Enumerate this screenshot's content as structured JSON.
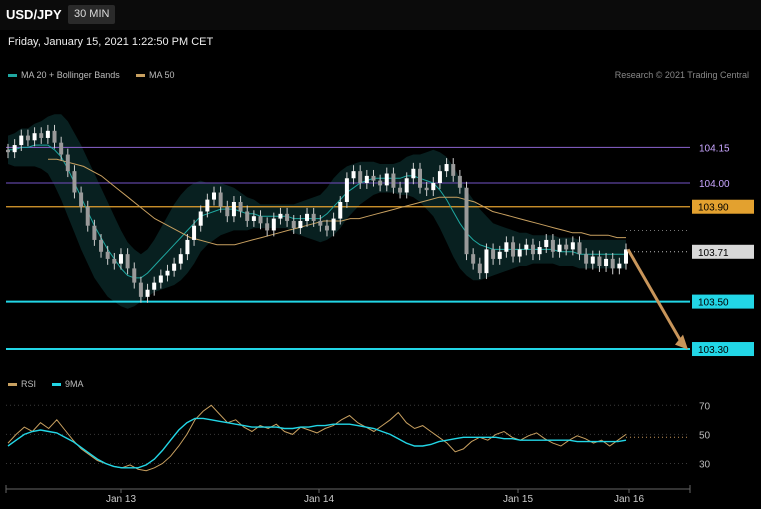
{
  "header": {
    "symbol": "USD/JPY",
    "interval": "30 MIN"
  },
  "timestamp": "Friday, January 15, 2021 1:22:50 PM CET",
  "legend": {
    "bb_label": "MA 20 + Bollinger Bands",
    "bb_color": "#1fa7a0",
    "ma50_label": "MA 50",
    "ma50_color": "#c8a060",
    "rsi_label": "RSI",
    "rsi_color": "#c8a060",
    "ma9_label": "9MA",
    "ma9_color": "#22d6e6"
  },
  "credit": "Research © 2021 Trading Central",
  "chart_data": {
    "type": "candlestick",
    "ylim": [
      103.22,
      104.35
    ],
    "levels": [
      {
        "value": "104.15",
        "color": "#7b58b8",
        "label_color": "#c9a6ff",
        "style": "line"
      },
      {
        "value": "104.00",
        "color": "#5e43a0",
        "label_color": "#c9a6ff",
        "style": "line"
      },
      {
        "value": "103.90",
        "color": "#e3a12f",
        "label_color": "#000",
        "style": "tag"
      },
      {
        "value": "103.71",
        "color": "#d8d8d8",
        "label_color": "#000",
        "style": "tag-current"
      },
      {
        "value": "103.50",
        "color": "#22d6e6",
        "label_color": "#000",
        "style": "tag"
      },
      {
        "value": "103.30",
        "color": "#22d6e6",
        "label_color": "#000",
        "style": "tag"
      }
    ],
    "forecast_arrow": {
      "from": 103.72,
      "to": 103.31,
      "color": "#c8955a"
    },
    "x_ticks": [
      "Jan 13",
      "Jan 14",
      "Jan 15",
      "Jan 16"
    ],
    "price_close": [
      104.13,
      104.16,
      104.2,
      104.18,
      104.21,
      104.19,
      104.22,
      104.17,
      104.12,
      104.05,
      103.96,
      103.9,
      103.82,
      103.76,
      103.71,
      103.68,
      103.66,
      103.7,
      103.64,
      103.58,
      103.52,
      103.55,
      103.58,
      103.61,
      103.63,
      103.66,
      103.7,
      103.76,
      103.82,
      103.88,
      103.93,
      103.96,
      103.9,
      103.86,
      103.92,
      103.88,
      103.84,
      103.86,
      103.83,
      103.8,
      103.85,
      103.87,
      103.84,
      103.81,
      103.84,
      103.87,
      103.84,
      103.82,
      103.8,
      103.85,
      103.92,
      104.02,
      104.05,
      104.0,
      104.03,
      104.01,
      103.99,
      104.04,
      103.98,
      103.96,
      104.02,
      104.06,
      103.98,
      103.97,
      104.0,
      104.05,
      104.08,
      104.03,
      103.98,
      103.7,
      103.66,
      103.62,
      103.72,
      103.68,
      103.71,
      103.75,
      103.69,
      103.72,
      103.74,
      103.7,
      103.73,
      103.76,
      103.71,
      103.74,
      103.72,
      103.75,
      103.7,
      103.66,
      103.69,
      103.65,
      103.68,
      103.64,
      103.66,
      103.72
    ],
    "ma20": [
      104.14,
      104.14,
      104.15,
      104.15,
      104.16,
      104.16,
      104.16,
      104.14,
      104.11,
      104.06,
      104.0,
      103.94,
      103.88,
      103.82,
      103.77,
      103.72,
      103.68,
      103.64,
      103.61,
      103.6,
      103.6,
      103.62,
      103.65,
      103.68,
      103.71,
      103.74,
      103.77,
      103.8,
      103.83,
      103.86,
      103.87,
      103.88,
      103.89,
      103.89,
      103.89,
      103.88,
      103.87,
      103.87,
      103.86,
      103.86,
      103.86,
      103.86,
      103.86,
      103.85,
      103.85,
      103.85,
      103.85,
      103.85,
      103.87,
      103.9,
      103.93,
      103.96,
      103.98,
      104.0,
      104.01,
      104.02,
      104.02,
      104.02,
      104.02,
      104.02,
      104.03,
      104.03,
      104.02,
      104.01,
      104.0,
      103.97,
      103.93,
      103.88,
      103.83,
      103.79,
      103.76,
      103.74,
      103.73,
      103.72,
      103.72,
      103.72,
      103.72,
      103.72,
      103.72,
      103.72,
      103.72,
      103.72,
      103.72,
      103.71,
      103.71,
      103.71,
      103.7,
      103.7,
      103.7,
      103.7,
      103.7,
      103.7,
      103.7,
      103.7
    ],
    "bb_width": [
      0.06,
      0.07,
      0.08,
      0.08,
      0.09,
      0.1,
      0.12,
      0.15,
      0.18,
      0.2,
      0.21,
      0.22,
      0.22,
      0.22,
      0.21,
      0.2,
      0.18,
      0.16,
      0.14,
      0.12,
      0.1,
      0.1,
      0.11,
      0.13,
      0.15,
      0.17,
      0.18,
      0.18,
      0.17,
      0.15,
      0.13,
      0.12,
      0.11,
      0.1,
      0.09,
      0.08,
      0.07,
      0.06,
      0.05,
      0.05,
      0.05,
      0.05,
      0.05,
      0.06,
      0.07,
      0.08,
      0.09,
      0.1,
      0.11,
      0.12,
      0.12,
      0.11,
      0.1,
      0.09,
      0.08,
      0.07,
      0.06,
      0.06,
      0.06,
      0.07,
      0.08,
      0.09,
      0.1,
      0.12,
      0.14,
      0.16,
      0.18,
      0.19,
      0.19,
      0.18,
      0.17,
      0.15,
      0.13,
      0.11,
      0.1,
      0.09,
      0.08,
      0.07,
      0.07,
      0.06,
      0.06,
      0.06,
      0.06,
      0.06,
      0.06,
      0.06,
      0.06,
      0.06,
      0.06,
      0.06,
      0.06,
      0.06,
      0.06,
      0.06
    ],
    "ma50": [
      104.1,
      104.1,
      104.09,
      104.08,
      104.07,
      104.05,
      104.03,
      104.0,
      103.97,
      103.94,
      103.91,
      103.88,
      103.85,
      103.83,
      103.81,
      103.79,
      103.77,
      103.76,
      103.75,
      103.74,
      103.74,
      103.74,
      103.75,
      103.76,
      103.77,
      103.78,
      103.79,
      103.8,
      103.81,
      103.82,
      103.83,
      103.84,
      103.84,
      103.84,
      103.85,
      103.85,
      103.86,
      103.87,
      103.88,
      103.89,
      103.9,
      103.91,
      103.92,
      103.93,
      103.94,
      103.94,
      103.94,
      103.93,
      103.92,
      103.9,
      103.88,
      103.87,
      103.86,
      103.85,
      103.84,
      103.83,
      103.82,
      103.81,
      103.8,
      103.79,
      103.79,
      103.78,
      103.78,
      103.78,
      103.77,
      103.77
    ],
    "rsi": {
      "levels": [
        "70",
        "50",
        "30"
      ],
      "ylim": [
        20,
        75
      ],
      "rsi_values": [
        44,
        50,
        55,
        52,
        58,
        54,
        60,
        53,
        46,
        40,
        36,
        32,
        30,
        28,
        27,
        29,
        26,
        25,
        27,
        30,
        35,
        42,
        50,
        60,
        66,
        70,
        64,
        58,
        60,
        55,
        52,
        56,
        54,
        57,
        52,
        50,
        55,
        53,
        51,
        54,
        56,
        60,
        63,
        58,
        55,
        52,
        56,
        60,
        65,
        58,
        54,
        56,
        52,
        48,
        44,
        38,
        40,
        45,
        48,
        46,
        50,
        52,
        48,
        46,
        49,
        51,
        47,
        44,
        42,
        46,
        49,
        47,
        44,
        46,
        42,
        46,
        50
      ],
      "ma9_values": [
        42,
        46,
        50,
        52,
        53,
        52,
        51,
        48,
        45,
        41,
        37,
        33,
        30,
        28,
        27,
        27,
        27,
        29,
        33,
        39,
        46,
        53,
        58,
        61,
        61,
        60,
        59,
        58,
        57,
        56,
        55,
        55,
        55,
        55,
        54,
        54,
        55,
        55,
        56,
        56,
        57,
        57,
        57,
        56,
        55,
        54,
        52,
        50,
        47,
        44,
        42,
        42,
        43,
        45,
        46,
        47,
        48,
        48,
        48,
        48,
        48,
        47,
        47,
        46,
        46,
        46,
        46,
        46,
        46,
        46,
        45,
        45,
        45,
        45,
        45,
        45,
        46
      ]
    }
  }
}
